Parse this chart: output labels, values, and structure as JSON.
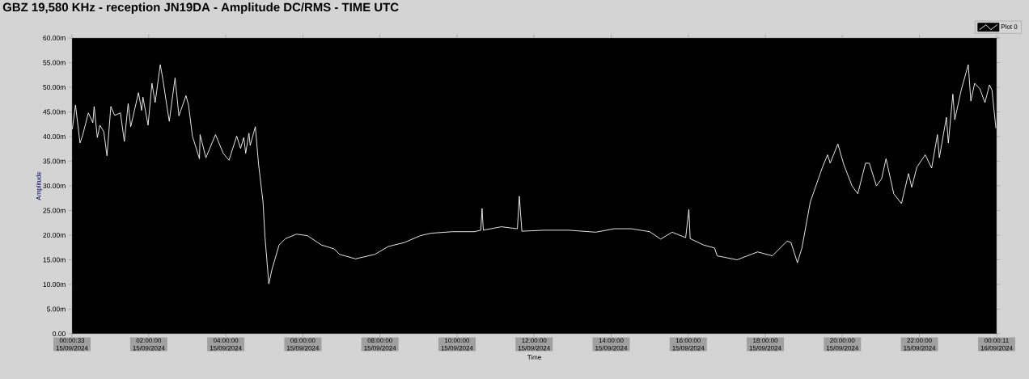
{
  "chart_data": {
    "type": "line",
    "title": "GBZ  19,580 KHz - reception JN19DA -  Amplitude DC/RMS   - TIME UTC",
    "xlabel": "Time",
    "ylabel": "Amplitude",
    "series": [
      {
        "name": "Plot 0",
        "color": "#ffffff",
        "x": [
          "2024-09-15T00:01",
          "2024-09-15T00:06",
          "2024-09-15T00:13",
          "2024-09-15T00:17",
          "2024-09-15T00:26",
          "2024-09-15T00:33",
          "2024-09-15T00:35",
          "2024-09-15T00:40",
          "2024-09-15T00:44",
          "2024-09-15T00:50",
          "2024-09-15T00:55",
          "2024-09-15T01:01",
          "2024-09-15T01:07",
          "2024-09-15T01:16",
          "2024-09-15T01:22",
          "2024-09-15T01:28",
          "2024-09-15T01:32",
          "2024-09-15T01:44",
          "2024-09-15T01:49",
          "2024-09-15T01:51",
          "2024-09-15T01:59",
          "2024-09-15T02:05",
          "2024-09-15T02:10",
          "2024-09-15T02:18",
          "2024-09-15T02:22",
          "2024-09-15T02:28",
          "2024-09-15T02:32",
          "2024-09-15T02:41",
          "2024-09-15T02:47",
          "2024-09-15T02:58",
          "2024-09-15T03:02",
          "2024-09-15T03:08",
          "2024-09-15T03:19",
          "2024-09-15T03:20",
          "2024-09-15T03:29",
          "2024-09-15T03:44",
          "2024-09-15T03:56",
          "2024-09-15T04:05",
          "2024-09-15T04:17",
          "2024-09-15T04:23",
          "2024-09-15T04:28",
          "2024-09-15T04:31",
          "2024-09-15T04:36",
          "2024-09-15T04:38",
          "2024-09-15T04:46",
          "2024-09-15T04:51",
          "2024-09-15T04:58",
          "2024-09-15T05:01",
          "2024-09-15T05:07",
          "2024-09-15T05:12",
          "2024-09-15T05:23",
          "2024-09-15T05:33",
          "2024-09-15T05:50",
          "2024-09-15T06:07",
          "2024-09-15T06:29",
          "2024-09-15T06:49",
          "2024-09-15T06:57",
          "2024-09-15T07:22",
          "2024-09-15T07:52",
          "2024-09-15T08:13",
          "2024-09-15T08:38",
          "2024-09-15T09:03",
          "2024-09-15T09:20",
          "2024-09-15T09:53",
          "2024-09-15T10:27",
          "2024-09-15T10:37",
          "2024-09-15T10:39",
          "2024-09-15T10:41",
          "2024-09-15T11:09",
          "2024-09-15T11:34",
          "2024-09-15T11:37",
          "2024-09-15T11:41",
          "2024-09-15T12:16",
          "2024-09-15T12:54",
          "2024-09-15T13:36",
          "2024-09-15T14:05",
          "2024-09-15T14:31",
          "2024-09-15T15:00",
          "2024-09-15T15:17",
          "2024-09-15T15:35",
          "2024-09-15T15:56",
          "2024-09-15T16:01",
          "2024-09-15T16:03",
          "2024-09-15T16:24",
          "2024-09-15T16:41",
          "2024-09-15T16:45",
          "2024-09-15T17:16",
          "2024-09-15T17:48",
          "2024-09-15T18:11",
          "2024-09-15T18:34",
          "2024-09-15T18:40",
          "2024-09-15T18:50",
          "2024-09-15T18:57",
          "2024-09-15T19:10",
          "2024-09-15T19:29",
          "2024-09-15T19:37",
          "2024-09-15T19:41",
          "2024-09-15T19:53",
          "2024-09-15T20:02",
          "2024-09-15T20:15",
          "2024-09-15T20:24",
          "2024-09-15T20:36",
          "2024-09-15T20:42",
          "2024-09-15T20:53",
          "2024-09-15T21:01",
          "2024-09-15T21:08",
          "2024-09-15T21:20",
          "2024-09-15T21:32",
          "2024-09-15T21:43",
          "2024-09-15T21:48",
          "2024-09-15T21:56",
          "2024-09-15T22:09",
          "2024-09-15T22:19",
          "2024-09-15T22:28",
          "2024-09-15T22:31",
          "2024-09-15T22:42",
          "2024-09-15T22:45",
          "2024-09-15T22:52",
          "2024-09-15T22:55",
          "2024-09-15T23:05",
          "2024-09-15T23:16",
          "2024-09-15T23:20",
          "2024-09-15T23:26",
          "2024-09-15T23:34",
          "2024-09-15T23:42",
          "2024-09-15T23:49",
          "2024-09-15T23:53",
          "2024-09-15T23:59"
        ],
        "values": [
          41.5,
          46.4,
          38.7,
          40.2,
          44.8,
          42.8,
          46.1,
          39.8,
          42.3,
          41,
          36.1,
          46.1,
          44.3,
          44.8,
          39,
          46.7,
          42,
          48.9,
          45.3,
          48,
          42.3,
          50.8,
          46.9,
          54.6,
          51.6,
          46.4,
          43.1,
          51.9,
          44.2,
          48.3,
          46.4,
          40.1,
          35.5,
          40.4,
          35.7,
          40.4,
          36.6,
          35.2,
          40.1,
          37.6,
          39.8,
          36.6,
          40.7,
          38.2,
          42,
          34.4,
          26.7,
          19.6,
          10.1,
          13.1,
          18,
          19.3,
          20.2,
          19.9,
          18,
          17.2,
          16.1,
          15.2,
          16.1,
          17.7,
          18.5,
          19.9,
          20.4,
          20.7,
          20.7,
          21,
          25.4,
          21,
          21.7,
          21.3,
          27.9,
          20.8,
          21,
          21,
          20.6,
          21.3,
          21.3,
          20.7,
          19.2,
          20.6,
          19.5,
          25.2,
          19.3,
          18,
          17.4,
          15.8,
          15,
          16.6,
          15.8,
          18.8,
          18.5,
          14.4,
          17.4,
          26.7,
          33.8,
          36.3,
          34.6,
          38.5,
          34.4,
          30,
          28.4,
          34.6,
          34.6,
          30,
          31.4,
          35.5,
          28.4,
          26.4,
          32.5,
          29.7,
          33.8,
          36.3,
          33.6,
          40.4,
          35.7,
          43.9,
          38.7,
          48.6,
          43.4,
          49.4,
          54.6,
          47.2,
          50.8,
          49.7,
          46.9,
          50.5,
          49.4,
          41.7
        ]
      }
    ],
    "xlim": [
      "2024-09-15T00:00:33",
      "2024-09-16T00:00:11"
    ],
    "xticks": [
      {
        "value": "2024-09-15T00:00:33",
        "label": "00:00:33 15/09/2024"
      },
      {
        "value": "2024-09-15T02:00",
        "label": "02:00:00 15/09/2024"
      },
      {
        "value": "2024-09-15T04:00",
        "label": "04:00:00 15/09/2024"
      },
      {
        "value": "2024-09-15T06:00",
        "label": "06:00:00 15/09/2024"
      },
      {
        "value": "2024-09-15T08:00",
        "label": "08:00:00 15/09/2024"
      },
      {
        "value": "2024-09-15T10:00",
        "label": "10:00:00 15/09/2024"
      },
      {
        "value": "2024-09-15T12:00",
        "label": "12:00:00 15/09/2024"
      },
      {
        "value": "2024-09-15T14:00",
        "label": "14:00:00 15/09/2024"
      },
      {
        "value": "2024-09-15T16:00",
        "label": "16:00:00 15/09/2024"
      },
      {
        "value": "2024-09-15T18:00",
        "label": "18:00:00 15/09/2024"
      },
      {
        "value": "2024-09-15T20:00",
        "label": "20:00:00 15/09/2024"
      },
      {
        "value": "2024-09-15T22:00",
        "label": "22:00:00 15/09/2024"
      },
      {
        "value": "2024-09-16T00:00:11",
        "label": "00:00:11 16/09/2024"
      }
    ],
    "ylim": [
      0,
      60
    ],
    "yticks": [
      {
        "value": 0,
        "label": "0.00"
      },
      {
        "value": 5,
        "label": "5.00m"
      },
      {
        "value": 10,
        "label": "10.00m"
      },
      {
        "value": 15,
        "label": "15.00m"
      },
      {
        "value": 20,
        "label": "20.00m"
      },
      {
        "value": 25,
        "label": "25.00m"
      },
      {
        "value": 30,
        "label": "30.00m"
      },
      {
        "value": 35,
        "label": "35.00m"
      },
      {
        "value": 40,
        "label": "40.00m"
      },
      {
        "value": 45,
        "label": "45.00m"
      },
      {
        "value": 50,
        "label": "50.00m"
      },
      {
        "value": 55,
        "label": "55.00m"
      },
      {
        "value": 60,
        "label": "60.00m"
      }
    ],
    "grid": false,
    "legend": "top right",
    "marker": "none",
    "line_style": "solid"
  }
}
